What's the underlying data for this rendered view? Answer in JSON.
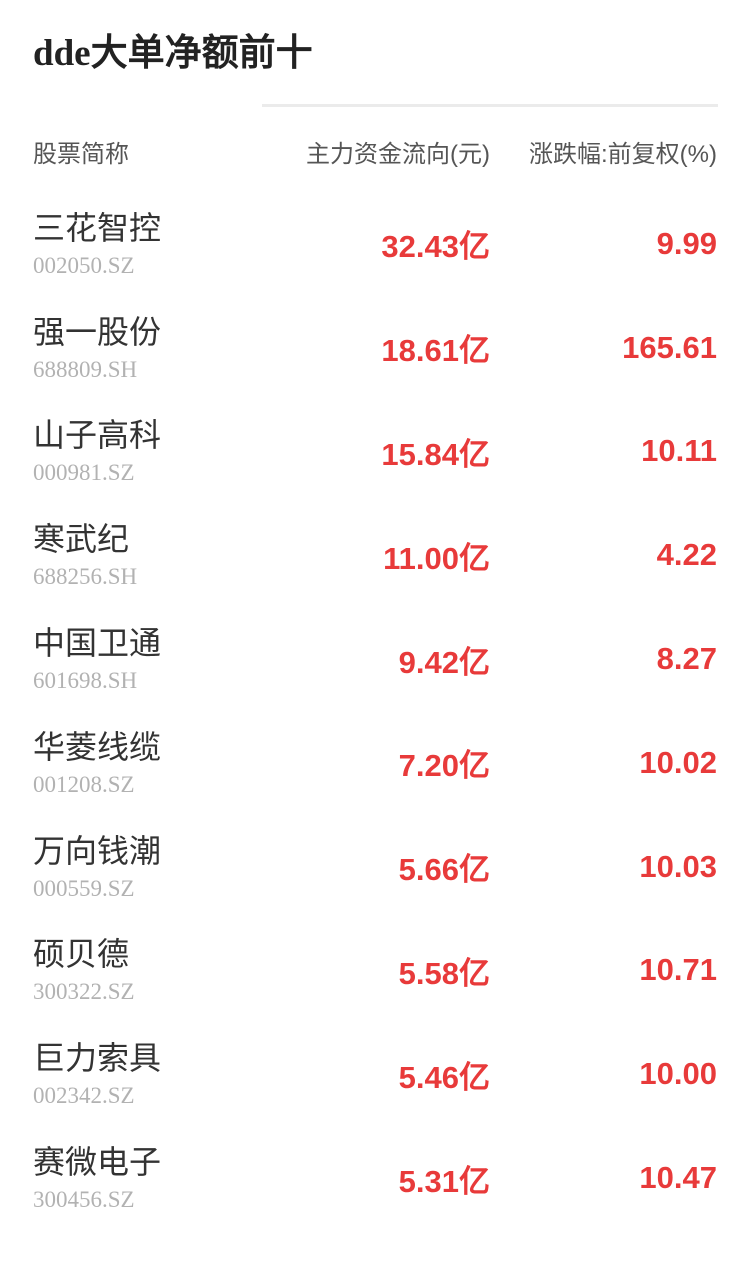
{
  "page": {
    "title": "dde大单净额前十"
  },
  "colors": {
    "up_red": "#e83a3a",
    "divider_gray": "#ebebeb",
    "header_gray": "#555555",
    "name_dark": "#333333",
    "code_gray": "#b2b2b2"
  },
  "table": {
    "columns": {
      "name": "股票简称",
      "flow": "主力资金流向(元)",
      "change": "涨跌幅:前复权(%)"
    },
    "rows": [
      {
        "name": "三花智控",
        "code": "002050.SZ",
        "flow": "32.43亿",
        "change": "9.99"
      },
      {
        "name": "强一股份",
        "code": "688809.SH",
        "flow": "18.61亿",
        "change": "165.61"
      },
      {
        "name": "山子高科",
        "code": "000981.SZ",
        "flow": "15.84亿",
        "change": "10.11"
      },
      {
        "name": "寒武纪",
        "code": "688256.SH",
        "flow": "11.00亿",
        "change": "4.22"
      },
      {
        "name": "中国卫通",
        "code": "601698.SH",
        "flow": "9.42亿",
        "change": "8.27"
      },
      {
        "name": "华菱线缆",
        "code": "001208.SZ",
        "flow": "7.20亿",
        "change": "10.02"
      },
      {
        "name": "万向钱潮",
        "code": "000559.SZ",
        "flow": "5.66亿",
        "change": "10.03"
      },
      {
        "name": "硕贝德",
        "code": "300322.SZ",
        "flow": "5.58亿",
        "change": "10.71"
      },
      {
        "name": "巨力索具",
        "code": "002342.SZ",
        "flow": "5.46亿",
        "change": "10.00"
      },
      {
        "name": "赛微电子",
        "code": "300456.SZ",
        "flow": "5.31亿",
        "change": "10.47"
      }
    ]
  }
}
